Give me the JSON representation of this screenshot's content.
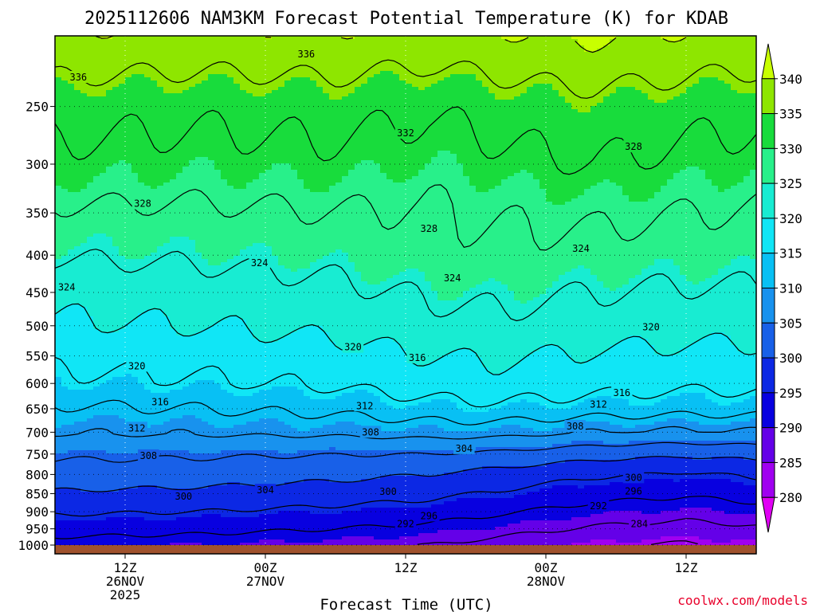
{
  "chart_data": {
    "type": "heatmap",
    "title": "2025112606 NAM3KM Forecast Potential Temperature (K) for KDAB",
    "xlabel": "Forecast Time (UTC)",
    "ylabel": "",
    "credit": "coolwx.com/models",
    "x_ticks": [
      {
        "hour": 6,
        "lines": [
          "12Z",
          "26NOV",
          "2025"
        ]
      },
      {
        "hour": 18,
        "lines": [
          "00Z",
          "27NOV"
        ]
      },
      {
        "hour": 30,
        "lines": [
          "12Z"
        ]
      },
      {
        "hour": 42,
        "lines": [
          "00Z",
          "28NOV"
        ]
      },
      {
        "hour": 54,
        "lines": [
          "12Z"
        ]
      }
    ],
    "xlim_hours": [
      0,
      60
    ],
    "y_scale": "log",
    "y_ticks": [
      250,
      300,
      350,
      400,
      450,
      500,
      550,
      600,
      650,
      700,
      750,
      800,
      850,
      900,
      950,
      1000
    ],
    "ylim": [
      1000,
      200
    ],
    "colorbar": {
      "ticks": [
        340,
        335,
        330,
        325,
        320,
        315,
        310,
        305,
        300,
        295,
        290,
        285,
        280
      ],
      "levels": [
        {
          "min": 340,
          "color": "#c8ff00"
        },
        {
          "min": 335,
          "color": "#8ee600"
        },
        {
          "min": 330,
          "color": "#18dc3c"
        },
        {
          "min": 325,
          "color": "#28f08a"
        },
        {
          "min": 320,
          "color": "#18ecd2"
        },
        {
          "min": 315,
          "color": "#10e6f6"
        },
        {
          "min": 310,
          "color": "#08c0f4"
        },
        {
          "min": 305,
          "color": "#1892ee"
        },
        {
          "min": 300,
          "color": "#1860e8"
        },
        {
          "min": 295,
          "color": "#0c28e4"
        },
        {
          "min": 290,
          "color": "#0800e0"
        },
        {
          "min": 285,
          "color": "#6400e8"
        },
        {
          "min": 280,
          "color": "#a000f0"
        },
        {
          "min": 0,
          "color": "#e000f4"
        }
      ]
    },
    "ground_color": "#a0522d",
    "theta_profile": [
      {
        "p": 1000,
        "theta": 289.5
      },
      {
        "p": 950,
        "theta": 292.5
      },
      {
        "p": 900,
        "theta": 295.5
      },
      {
        "p": 850,
        "theta": 298.5
      },
      {
        "p": 800,
        "theta": 301.5
      },
      {
        "p": 750,
        "theta": 304.5
      },
      {
        "p": 700,
        "theta": 309.0
      },
      {
        "p": 650,
        "theta": 313.0
      },
      {
        "p": 600,
        "theta": 316.5
      },
      {
        "p": 550,
        "theta": 318.5
      },
      {
        "p": 500,
        "theta": 321.0
      },
      {
        "p": 450,
        "theta": 323.0
      },
      {
        "p": 400,
        "theta": 325.5
      },
      {
        "p": 350,
        "theta": 327.5
      },
      {
        "p": 300,
        "theta": 330.5
      },
      {
        "p": 250,
        "theta": 333.0
      },
      {
        "p": 200,
        "theta": 339.0
      }
    ],
    "time_trend": [
      {
        "hour": 0,
        "low": 1.0,
        "mid": -1.5,
        "up": 0.5
      },
      {
        "hour": 12,
        "low": 0.5,
        "mid": -1.0,
        "up": 0.0
      },
      {
        "hour": 24,
        "low": -0.5,
        "mid": 0.0,
        "up": 0.5
      },
      {
        "hour": 32,
        "low": -1.5,
        "mid": 1.5,
        "up": -0.5
      },
      {
        "hour": 38,
        "low": -3.0,
        "mid": 2.0,
        "up": 0.5
      },
      {
        "hour": 46,
        "low": -5.0,
        "mid": 1.0,
        "up": 1.5
      },
      {
        "hour": 54,
        "low": -6.0,
        "mid": 0.5,
        "up": 0.5
      },
      {
        "hour": 60,
        "low": -5.0,
        "mid": 0.5,
        "up": 0.0
      }
    ],
    "contour_interval": 4,
    "contour_labels": [
      {
        "text": "336",
        "hour": 21.5,
        "p": 212
      },
      {
        "text": "336",
        "hour": 2.0,
        "p": 228
      },
      {
        "text": "332",
        "hour": 30.0,
        "p": 272
      },
      {
        "text": "328",
        "hour": 49.5,
        "p": 284
      },
      {
        "text": "328",
        "hour": 7.5,
        "p": 340
      },
      {
        "text": "328",
        "hour": 32.0,
        "p": 368
      },
      {
        "text": "324",
        "hour": 45.0,
        "p": 392
      },
      {
        "text": "324",
        "hour": 17.5,
        "p": 410
      },
      {
        "text": "324",
        "hour": 34.0,
        "p": 430
      },
      {
        "text": "324",
        "hour": 1.0,
        "p": 443
      },
      {
        "text": "320",
        "hour": 51.0,
        "p": 502
      },
      {
        "text": "320",
        "hour": 25.5,
        "p": 535
      },
      {
        "text": "320",
        "hour": 7.0,
        "p": 568
      },
      {
        "text": "316",
        "hour": 31.0,
        "p": 553
      },
      {
        "text": "316",
        "hour": 48.5,
        "p": 618
      },
      {
        "text": "316",
        "hour": 9.0,
        "p": 636
      },
      {
        "text": "312",
        "hour": 26.5,
        "p": 644
      },
      {
        "text": "312",
        "hour": 46.5,
        "p": 641
      },
      {
        "text": "312",
        "hour": 7.0,
        "p": 691
      },
      {
        "text": "308",
        "hour": 27.0,
        "p": 700
      },
      {
        "text": "308",
        "hour": 44.5,
        "p": 687
      },
      {
        "text": "308",
        "hour": 8.0,
        "p": 754
      },
      {
        "text": "304",
        "hour": 35.0,
        "p": 737
      },
      {
        "text": "304",
        "hour": 18.0,
        "p": 841
      },
      {
        "text": "300",
        "hour": 49.5,
        "p": 808
      },
      {
        "text": "300",
        "hour": 11.0,
        "p": 858
      },
      {
        "text": "300",
        "hour": 28.5,
        "p": 845
      },
      {
        "text": "296",
        "hour": 49.5,
        "p": 844
      },
      {
        "text": "296",
        "hour": 32.0,
        "p": 912
      },
      {
        "text": "292",
        "hour": 46.5,
        "p": 884
      },
      {
        "text": "292",
        "hour": 30.0,
        "p": 935
      },
      {
        "text": "284",
        "hour": 50.0,
        "p": 935
      }
    ]
  }
}
